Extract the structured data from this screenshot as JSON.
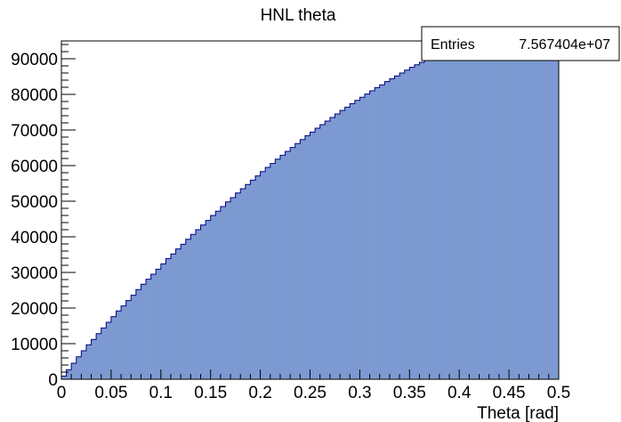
{
  "chart_data": {
    "type": "bar",
    "title": "HNL theta",
    "xlabel": "Theta [rad]",
    "ylabel": "",
    "xlim": [
      0,
      0.5
    ],
    "ylim": [
      0,
      95000
    ],
    "bins": 100,
    "bin_width": 0.005,
    "x_ticks": [
      "0",
      "0.05",
      "0.1",
      "0.15",
      "0.2",
      "0.25",
      "0.3",
      "0.35",
      "0.4",
      "0.45",
      "0.5"
    ],
    "y_ticks": [
      "0",
      "10000",
      "20000",
      "30000",
      "40000",
      "50000",
      "60000",
      "70000",
      "80000",
      "90000"
    ],
    "fill_color": "#7c99d1",
    "line_color": "#000080",
    "values": [
      900,
      2700,
      4500,
      6300,
      8000,
      9700,
      11200,
      12800,
      14400,
      16000,
      17600,
      19200,
      20600,
      22100,
      23600,
      25200,
      26700,
      28100,
      29500,
      30900,
      32400,
      33900,
      35200,
      36600,
      37900,
      39300,
      40700,
      42000,
      43300,
      44600,
      46000,
      47200,
      48500,
      49800,
      51000,
      52300,
      53500,
      54700,
      55900,
      57100,
      58300,
      59500,
      60600,
      61800,
      62900,
      64000,
      65100,
      66200,
      67300,
      68400,
      69400,
      70500,
      71500,
      72500,
      73500,
      74500,
      75500,
      76400,
      77400,
      78300,
      79200,
      80100,
      81000,
      81900,
      82700,
      83600,
      84400,
      85200,
      86000,
      86800,
      87600,
      88300,
      89000,
      89800,
      90500,
      91200,
      91800,
      92500,
      93100,
      93800,
      94400,
      95000,
      95500,
      96100,
      96600,
      97100,
      97600,
      98100,
      98600,
      99000,
      99400,
      99900,
      100300,
      100600,
      101000,
      101300,
      101700,
      102000,
      102300,
      102500
    ]
  },
  "stats_box": {
    "label": "Entries",
    "value": "7.567404e+07"
  }
}
